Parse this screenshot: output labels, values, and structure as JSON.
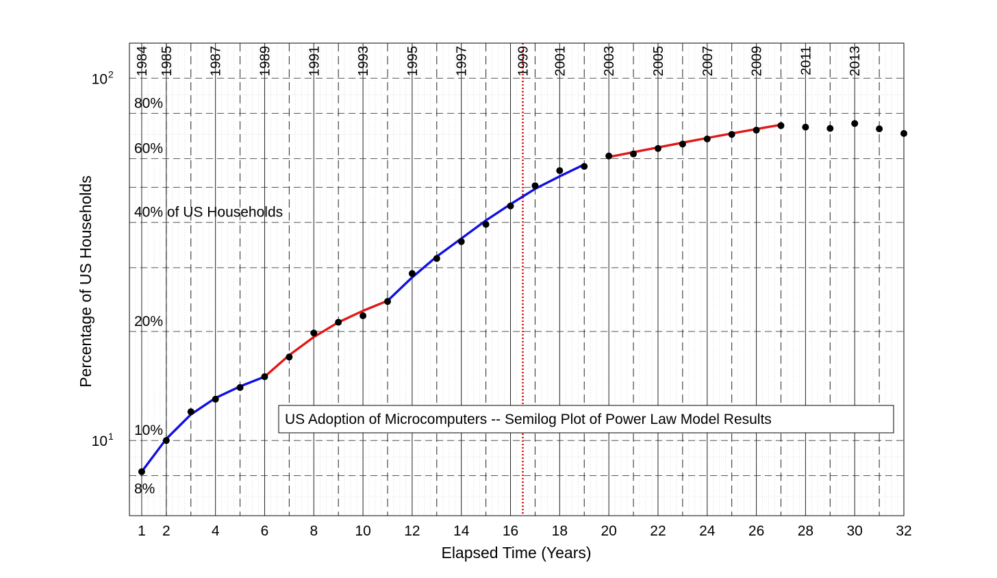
{
  "chart_data": {
    "type": "line",
    "title": "US Adoption of Microcomputers -- Semilog Plot of Power Law Model Results",
    "xlabel": "Elapsed Time (Years)",
    "ylabel": "Percentage of US Households",
    "x_range": [
      0.5,
      32
    ],
    "y_range": [
      6.2,
      125
    ],
    "y_scale": "log",
    "grid": true,
    "x_ticks": [
      1,
      2,
      4,
      6,
      8,
      10,
      12,
      14,
      16,
      18,
      20,
      22,
      24,
      26,
      28,
      30,
      32
    ],
    "x_tick_labels": [
      "1",
      "2",
      "4",
      "6",
      "8",
      "10",
      "12",
      "14",
      "16",
      "18",
      "20",
      "22",
      "24",
      "26",
      "28",
      "30",
      "32"
    ],
    "y_ticks": [
      {
        "value": 10,
        "base": "10",
        "exp": "1"
      },
      {
        "value": 100,
        "base": "10",
        "exp": "2"
      }
    ],
    "percent_labels": [
      {
        "value": 80,
        "text": "80%"
      },
      {
        "value": 60,
        "text": "60%"
      },
      {
        "value": 40,
        "text": "40% of US Households"
      },
      {
        "value": 20,
        "text": "20%"
      },
      {
        "value": 10,
        "text": "10%"
      },
      {
        "value": 8,
        "text": "8%"
      }
    ],
    "year_labels": [
      {
        "x": 1,
        "text": "1984"
      },
      {
        "x": 2,
        "text": "1985"
      },
      {
        "x": 4,
        "text": "1987"
      },
      {
        "x": 6,
        "text": "1989"
      },
      {
        "x": 8,
        "text": "1991"
      },
      {
        "x": 10,
        "text": "1993"
      },
      {
        "x": 12,
        "text": "1995"
      },
      {
        "x": 14,
        "text": "1997"
      },
      {
        "x": 16.5,
        "text": "1999"
      },
      {
        "x": 18,
        "text": "2001"
      },
      {
        "x": 20,
        "text": "2003"
      },
      {
        "x": 22,
        "text": "2005"
      },
      {
        "x": 24,
        "text": "2007"
      },
      {
        "x": 26,
        "text": "2009"
      },
      {
        "x": 28,
        "text": "2011"
      },
      {
        "x": 30,
        "text": "2013"
      }
    ],
    "dashed_verticals": [
      2,
      3,
      5,
      7,
      9,
      11,
      13,
      15,
      17,
      19,
      21,
      23,
      25,
      27,
      29,
      31
    ],
    "solid_verticals": [
      1,
      2,
      4,
      6,
      8,
      10,
      12,
      14,
      16,
      18,
      20,
      22,
      24,
      26,
      28,
      30
    ],
    "marker_line": {
      "x": 16.5,
      "color": "#e8202a"
    },
    "colors": {
      "blue": "#1010e0",
      "red": "#e01818",
      "points": "#000000"
    },
    "series": [
      {
        "kind": "points",
        "x": [
          1,
          2,
          3,
          4,
          5,
          6,
          7,
          8,
          9,
          10,
          11,
          12,
          13,
          14,
          15,
          16,
          17,
          18,
          19,
          20,
          21,
          22,
          23,
          24,
          25,
          26,
          27,
          28,
          29,
          30,
          31,
          32
        ],
        "values": [
          8.2,
          10.0,
          12.0,
          13.0,
          14.0,
          15.0,
          17.0,
          19.8,
          21.2,
          22.1,
          24.2,
          28.9,
          31.8,
          35.4,
          39.5,
          44.4,
          50.5,
          55.6,
          57.1,
          61.0,
          61.8,
          64.0,
          65.8,
          68.0,
          70.0,
          71.9,
          74.0,
          73.3,
          72.7,
          75.0,
          72.5,
          70.4
        ]
      },
      {
        "kind": "fit",
        "color": "blue",
        "x": [
          1,
          2,
          3,
          4,
          5,
          6
        ],
        "values": [
          8.2,
          10.1,
          11.8,
          13.1,
          14.1,
          15.0
        ]
      },
      {
        "kind": "fit",
        "color": "red",
        "x": [
          6,
          7,
          8,
          9,
          10,
          11
        ],
        "values": [
          15.0,
          17.2,
          19.3,
          21.2,
          22.8,
          24.3
        ]
      },
      {
        "kind": "fit",
        "color": "blue",
        "x": [
          11,
          12,
          13,
          14,
          15,
          16,
          17,
          18,
          19
        ],
        "values": [
          24.3,
          28.2,
          32.2,
          36.1,
          40.5,
          44.9,
          49.5,
          53.6,
          57.8
        ]
      },
      {
        "kind": "fit",
        "color": "red",
        "x": [
          20,
          21,
          22,
          23,
          24,
          25,
          26,
          27
        ],
        "values": [
          60.6,
          62.5,
          64.4,
          66.4,
          68.4,
          70.4,
          72.4,
          74.4
        ]
      }
    ]
  }
}
